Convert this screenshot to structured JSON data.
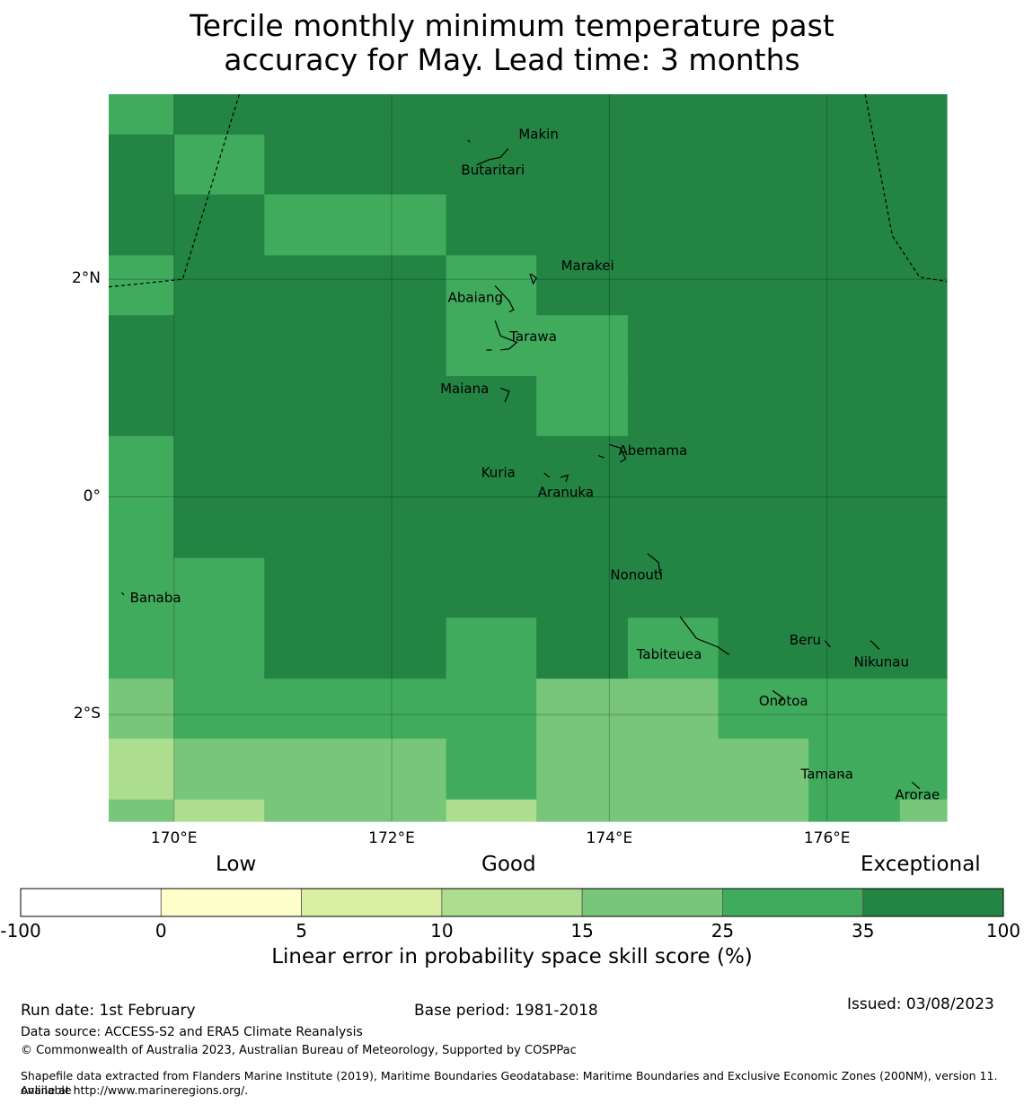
{
  "title": {
    "line1": "Tercile monthly minimum temperature past",
    "line2": "accuracy for May. Lead time: 3 months"
  },
  "map": {
    "lon_range": [
      169.4,
      177.1
    ],
    "lat_range": [
      -2.98,
      3.7
    ],
    "lon_ticks": [
      {
        "value": 170,
        "label": "170°E"
      },
      {
        "value": 172,
        "label": "172°E"
      },
      {
        "value": 174,
        "label": "174°E"
      },
      {
        "value": 176,
        "label": "176°E"
      }
    ],
    "lat_ticks": [
      {
        "value": 2,
        "label": "2°N"
      },
      {
        "value": 0,
        "label": "0°"
      },
      {
        "value": -2,
        "label": "2°S"
      }
    ],
    "grid_lon_edges": [
      169.4,
      170.0,
      170.83,
      171.67,
      172.5,
      173.33,
      174.17,
      175.0,
      175.83,
      176.67,
      177.1
    ],
    "grid_lat_edges": [
      3.7,
      3.33,
      2.78,
      2.22,
      1.67,
      1.11,
      0.56,
      0.0,
      -0.56,
      -1.11,
      -1.67,
      -2.22,
      -2.78,
      -2.98
    ],
    "grid_levels": [
      [
        5,
        6,
        6,
        6,
        6,
        6,
        6,
        6,
        6,
        6
      ],
      [
        6,
        5,
        6,
        6,
        6,
        6,
        6,
        6,
        6,
        6
      ],
      [
        6,
        6,
        5,
        5,
        6,
        6,
        6,
        6,
        6,
        6
      ],
      [
        5,
        6,
        6,
        6,
        5,
        6,
        6,
        6,
        6,
        6
      ],
      [
        6,
        6,
        6,
        6,
        5,
        5,
        6,
        6,
        6,
        6
      ],
      [
        6,
        6,
        6,
        6,
        6,
        5,
        6,
        6,
        6,
        6
      ],
      [
        5,
        6,
        6,
        6,
        6,
        6,
        6,
        6,
        6,
        6
      ],
      [
        5,
        6,
        6,
        6,
        6,
        6,
        6,
        6,
        6,
        6
      ],
      [
        5,
        5,
        6,
        6,
        6,
        6,
        6,
        6,
        6,
        6
      ],
      [
        5,
        5,
        6,
        6,
        5,
        6,
        5,
        6,
        6,
        6
      ],
      [
        4,
        5,
        5,
        5,
        5,
        4,
        4,
        5,
        5,
        5
      ],
      [
        3,
        4,
        4,
        4,
        5,
        4,
        4,
        4,
        5,
        5
      ],
      [
        4,
        3,
        4,
        4,
        3,
        4,
        4,
        4,
        5,
        4
      ]
    ],
    "eez_boundaries": [
      [
        [
          169.4,
          1.93
        ],
        [
          170.08,
          2.0
        ],
        [
          170.6,
          3.7
        ]
      ],
      [
        [
          176.35,
          3.7
        ],
        [
          176.6,
          2.4
        ],
        [
          176.85,
          2.02
        ],
        [
          177.1,
          1.98
        ]
      ]
    ],
    "islands": [
      {
        "name": "Makin",
        "lon": 173.35,
        "lat": 3.33
      },
      {
        "name": "Butaritari",
        "lon": 172.93,
        "lat": 3.0
      },
      {
        "name": "Marakei",
        "lon": 173.8,
        "lat": 2.12
      },
      {
        "name": "Abaiang",
        "lon": 172.77,
        "lat": 1.83
      },
      {
        "name": "Tarawa",
        "lon": 173.3,
        "lat": 1.47
      },
      {
        "name": "Maiana",
        "lon": 172.67,
        "lat": 0.99
      },
      {
        "name": "Abemama",
        "lon": 174.4,
        "lat": 0.42
      },
      {
        "name": "Kuria",
        "lon": 172.98,
        "lat": 0.22
      },
      {
        "name": "Aranuka",
        "lon": 173.6,
        "lat": 0.04
      },
      {
        "name": "Nonouti",
        "lon": 174.25,
        "lat": -0.72
      },
      {
        "name": "Banaba",
        "lon": 169.83,
        "lat": -0.93
      },
      {
        "name": "Beru",
        "lon": 175.8,
        "lat": -1.32
      },
      {
        "name": "Tabiteuea",
        "lon": 174.55,
        "lat": -1.45
      },
      {
        "name": "Nikunau",
        "lon": 176.5,
        "lat": -1.52
      },
      {
        "name": "Onotoa",
        "lon": 175.6,
        "lat": -1.88
      },
      {
        "name": "Tamana",
        "lon": 176.0,
        "lat": -2.55
      },
      {
        "name": "Arorae",
        "lon": 176.83,
        "lat": -2.74
      }
    ],
    "coastlines": [
      [
        [
          172.7,
          3.28
        ],
        [
          172.72,
          3.26
        ]
      ],
      [
        [
          172.78,
          3.05
        ],
        [
          172.9,
          3.1
        ],
        [
          173.0,
          3.12
        ],
        [
          173.07,
          3.2
        ]
      ],
      [
        [
          173.27,
          2.05
        ],
        [
          173.3,
          1.96
        ],
        [
          173.33,
          2.01
        ],
        [
          173.28,
          2.05
        ]
      ],
      [
        [
          172.95,
          1.94
        ],
        [
          173.08,
          1.8
        ],
        [
          173.12,
          1.72
        ],
        [
          173.08,
          1.7
        ]
      ],
      [
        [
          172.95,
          1.62
        ],
        [
          173.0,
          1.48
        ],
        [
          173.15,
          1.42
        ],
        [
          173.08,
          1.36
        ],
        [
          173.0,
          1.35
        ]
      ],
      [
        [
          172.87,
          1.35
        ],
        [
          172.92,
          1.35
        ]
      ],
      [
        [
          173.0,
          1.0
        ],
        [
          173.08,
          0.97
        ],
        [
          173.04,
          0.87
        ]
      ],
      [
        [
          174.0,
          0.48
        ],
        [
          174.1,
          0.45
        ],
        [
          174.15,
          0.35
        ],
        [
          174.1,
          0.32
        ]
      ],
      [
        [
          173.9,
          0.38
        ],
        [
          173.95,
          0.36
        ]
      ],
      [
        [
          173.4,
          0.22
        ],
        [
          173.45,
          0.18
        ]
      ],
      [
        [
          173.55,
          0.18
        ],
        [
          173.62,
          0.2
        ],
        [
          173.6,
          0.14
        ]
      ],
      [
        [
          174.35,
          -0.52
        ],
        [
          174.45,
          -0.6
        ],
        [
          174.47,
          -0.72
        ]
      ],
      [
        [
          169.52,
          -0.88
        ],
        [
          169.54,
          -0.9
        ]
      ],
      [
        [
          174.65,
          -1.1
        ],
        [
          174.8,
          -1.3
        ],
        [
          175.0,
          -1.38
        ],
        [
          175.1,
          -1.45
        ]
      ],
      [
        [
          175.98,
          -1.32
        ],
        [
          176.03,
          -1.38
        ]
      ],
      [
        [
          176.4,
          -1.32
        ],
        [
          176.48,
          -1.4
        ]
      ],
      [
        [
          175.5,
          -1.78
        ],
        [
          175.6,
          -1.85
        ],
        [
          175.55,
          -1.9
        ]
      ],
      [
        [
          176.12,
          -2.55
        ],
        [
          176.15,
          -2.57
        ]
      ],
      [
        [
          176.78,
          -2.62
        ],
        [
          176.85,
          -2.68
        ]
      ]
    ]
  },
  "colorbar": {
    "categories": [
      "Low",
      "Good",
      "Exceptional"
    ],
    "colors": [
      "#ffffff",
      "#ffffcc",
      "#d9f0a3",
      "#addd8e",
      "#78c679",
      "#41ab5d",
      "#238443"
    ],
    "ticks": [
      "-100",
      "0",
      "5",
      "10",
      "15",
      "25",
      "35",
      "100"
    ],
    "label": "Linear error in probability space skill score (%)"
  },
  "footer": {
    "run_date": "Run date: 1st February",
    "base_period": "Base period: 1981-2018",
    "issued": "Issued: 03/08/2023",
    "data_source": "Data source: ACCESS-S2 and ERA5 Climate Reanalysis",
    "copyright": "© Commonwealth of Australia 2023, Australian Bureau of Meteorology, Supported by COSPPac",
    "shapefile_line1": "Shapefile data extracted from Flanders Marine Institute (2019), Maritime Boundaries Geodatabase: Maritime Boundaries and Exclusive Economic Zones (200NM), version 11. Available",
    "shapefile_line2": "online at http://www.marineregions.org/."
  }
}
